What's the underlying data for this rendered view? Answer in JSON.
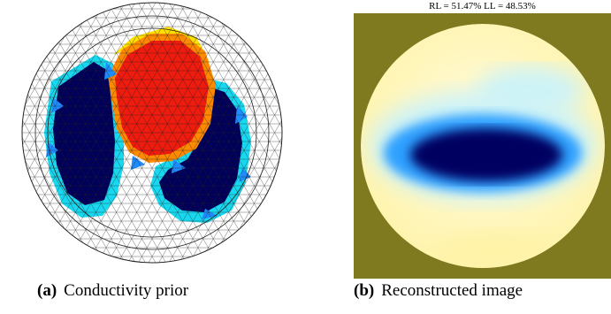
{
  "panels": [
    {
      "tag": "(a)",
      "caption": "Conductivity prior",
      "colors": {
        "mesh_line": "#222222",
        "background": "#ffffff",
        "lung_core": "#00005a",
        "lung_edge": "#1e8cff",
        "lung_rim": "#18d8f0",
        "heart": "#ee1b0e",
        "heart_edge": "#ff8a00",
        "heart_top": "#ffe100"
      }
    },
    {
      "tag": "(b)",
      "caption": "Reconstructed image",
      "title": "RL = 51.47% LL = 48.53%",
      "colors": {
        "background": "#7f7a20",
        "field": "#fffbe0",
        "field_warm": "#fff3a8",
        "halo": "#cdf3f8",
        "mid": "#2ea0ff",
        "core": "#000060"
      }
    }
  ]
}
